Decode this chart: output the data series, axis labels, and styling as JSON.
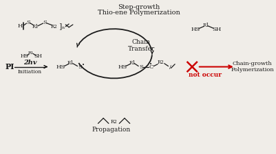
{
  "bg_color": "#f0ede8",
  "title_top": "Step-growth",
  "title_top2": "Thio-ene Polymerization",
  "chain_transfer_label": "Chain\nTransfer",
  "propagation_label": "Propagation",
  "initiation_label": "Initiation",
  "initiation_2hv": "2hv",
  "not_occur_label": "not occur",
  "chain_growth_label": "Chain-growth\nPolymerization",
  "PI_label": "PI",
  "red_color": "#cc0000",
  "black_color": "#1a1a1a"
}
